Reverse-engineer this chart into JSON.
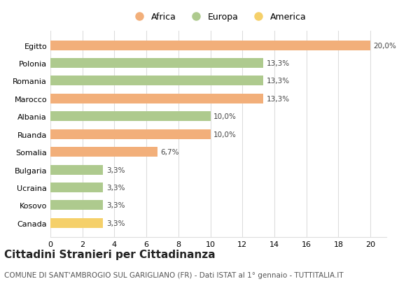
{
  "countries": [
    "Egitto",
    "Polonia",
    "Romania",
    "Marocco",
    "Albania",
    "Ruanda",
    "Somalia",
    "Bulgaria",
    "Ucraina",
    "Kosovo",
    "Canada"
  ],
  "values": [
    20.0,
    13.3,
    13.3,
    13.3,
    10.0,
    10.0,
    6.7,
    3.3,
    3.3,
    3.3,
    3.3
  ],
  "labels": [
    "20,0%",
    "13,3%",
    "13,3%",
    "13,3%",
    "10,0%",
    "10,0%",
    "6,7%",
    "3,3%",
    "3,3%",
    "3,3%",
    "3,3%"
  ],
  "colors": [
    "#F2AF7A",
    "#AECA8E",
    "#AECA8E",
    "#F2AF7A",
    "#AECA8E",
    "#F2AF7A",
    "#F2AF7A",
    "#AECA8E",
    "#AECA8E",
    "#AECA8E",
    "#F5D06A"
  ],
  "legend_labels": [
    "Africa",
    "Europa",
    "America"
  ],
  "legend_colors": [
    "#F2AF7A",
    "#AECA8E",
    "#F5D06A"
  ],
  "xlim": [
    0,
    21
  ],
  "xticks": [
    0,
    2,
    4,
    6,
    8,
    10,
    12,
    14,
    16,
    18,
    20
  ],
  "title": "Cittadini Stranieri per Cittadinanza",
  "subtitle": "COMUNE DI SANT'AMBROGIO SUL GARIGLIANO (FR) - Dati ISTAT al 1° gennaio - TUTTITALIA.IT",
  "bg_color": "#ffffff",
  "grid_color": "#dddddd",
  "bar_height": 0.55,
  "title_fontsize": 11,
  "subtitle_fontsize": 7.5,
  "label_fontsize": 7.5,
  "tick_fontsize": 8,
  "legend_fontsize": 9
}
